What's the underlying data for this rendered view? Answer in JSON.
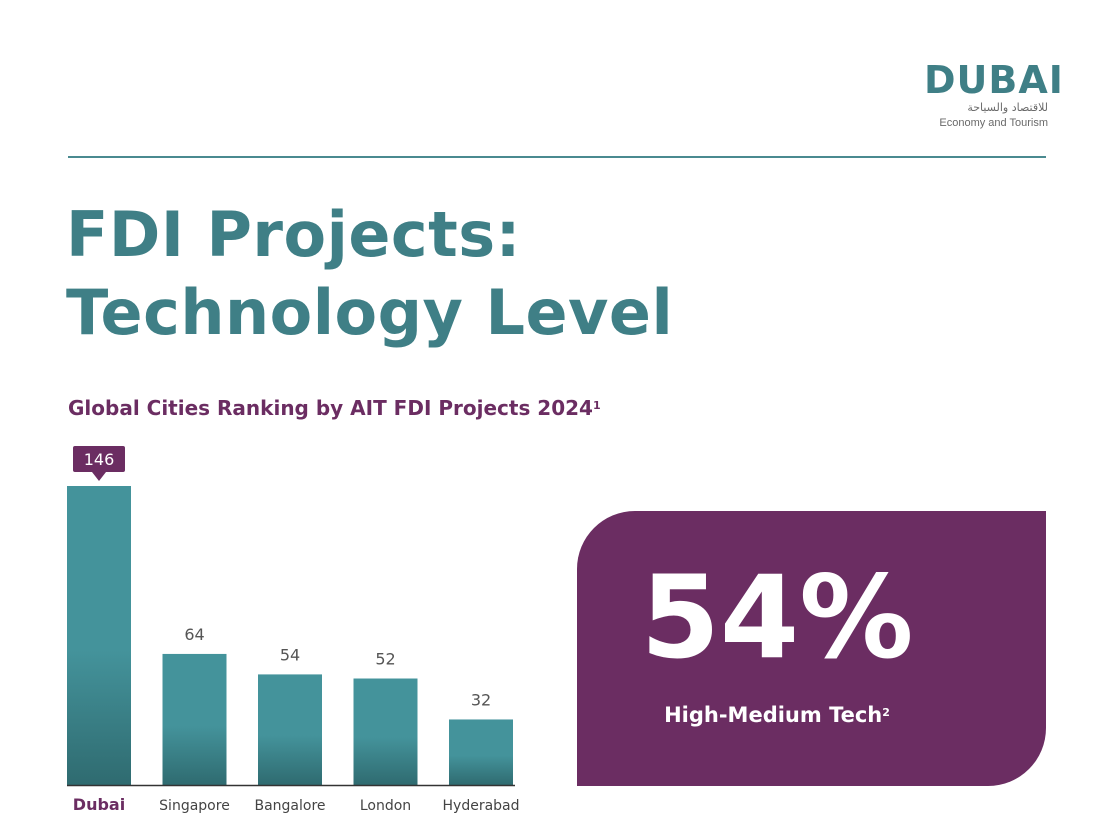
{
  "logo": {
    "word": "DUBAI",
    "arabic": "للاقتصاد والسياحة",
    "english": "Economy and Tourism"
  },
  "title": {
    "line1": "FDI Projects:",
    "line2": "Technology Level"
  },
  "subtitle": {
    "text": "Global Cities Ranking by AIT FDI Projects 2024",
    "footnote": "1"
  },
  "chart_data": {
    "type": "bar",
    "categories": [
      "Dubai",
      "Singapore",
      "Bangalore",
      "London",
      "Hyderabad"
    ],
    "values": [
      146,
      64,
      54,
      52,
      32
    ],
    "title": "Global Cities Ranking by AIT FDI Projects 2024",
    "xlabel": "",
    "ylabel": "",
    "ylim": [
      0,
      146
    ],
    "highlight": "Dubai",
    "grid": false,
    "colors": {
      "bar_top": "#44939b",
      "bar_bottom": "#2f6b70",
      "highlight_label": "#6b2d62",
      "value_label": "#555555",
      "category_label": "#444444",
      "callout_bg": "#6b2d62",
      "axis": "#333333"
    }
  },
  "stat": {
    "value": "54%",
    "label": "High-Medium Tech",
    "footnote": "2",
    "background": "#6b2d62"
  }
}
